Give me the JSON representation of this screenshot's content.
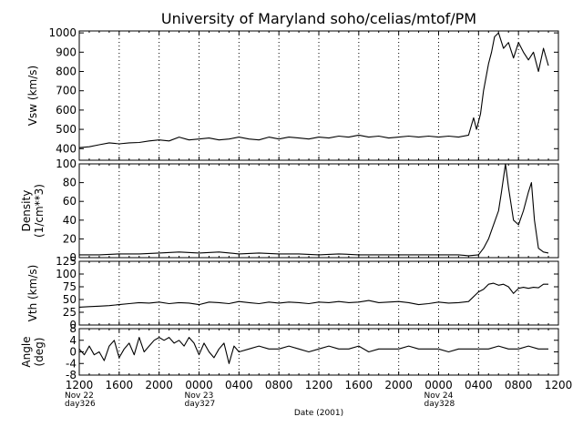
{
  "chart_data": {
    "type": "line",
    "title": "University of Maryland  soho/celias/mtof/PM",
    "xlabel": "Date (2001)",
    "x_ticks": [
      "1200",
      "1600",
      "2000",
      "0000",
      "0400",
      "0800",
      "1200",
      "1600",
      "2000",
      "0000",
      "0400",
      "0800",
      "1200"
    ],
    "x_day_labels": [
      {
        "tick": 0,
        "lines": [
          "Nov 22",
          "day326"
        ]
      },
      {
        "tick": 3,
        "lines": [
          "Nov 23",
          "day327"
        ]
      },
      {
        "tick": 9,
        "lines": [
          "Nov 24",
          "day328"
        ]
      }
    ],
    "x_unit": "hours since 2001-11-22 12:00",
    "xlim": [
      0,
      48
    ],
    "grid": "vertical dotted",
    "panels": [
      {
        "ylabel": [
          "Vsw (km/s)"
        ],
        "ylim": [
          340,
          1010
        ],
        "yticks": [
          400,
          500,
          600,
          700,
          800,
          900,
          1000
        ],
        "series": {
          "x": [
            0,
            1,
            2,
            3,
            4,
            5,
            6,
            7,
            8,
            9,
            10,
            11,
            12,
            13,
            14,
            15,
            16,
            17,
            18,
            19,
            20,
            21,
            22,
            23,
            24,
            25,
            26,
            27,
            28,
            29,
            30,
            31,
            32,
            33,
            34,
            35,
            36,
            37,
            38,
            39,
            39.5,
            39.8,
            40.2,
            40.5,
            41,
            41.3,
            41.6,
            42,
            42.5,
            43,
            43.5,
            44,
            44.5,
            45,
            45.5,
            46,
            46.5,
            47
          ],
          "y": [
            405,
            410,
            420,
            430,
            425,
            430,
            432,
            440,
            445,
            440,
            460,
            445,
            450,
            455,
            445,
            450,
            460,
            450,
            445,
            460,
            450,
            460,
            455,
            450,
            460,
            455,
            465,
            460,
            470,
            460,
            465,
            455,
            460,
            465,
            460,
            465,
            460,
            465,
            460,
            470,
            560,
            500,
            580,
            700,
            840,
            900,
            980,
            1000,
            920,
            950,
            870,
            950,
            900,
            860,
            900,
            800,
            920,
            830
          ]
        }
      },
      {
        "ylabel": [
          "Density",
          "(1/cm**3)"
        ],
        "ylim": [
          0,
          100
        ],
        "yticks": [
          0,
          20,
          40,
          60,
          80,
          100
        ],
        "series": {
          "x": [
            0,
            2,
            4,
            6,
            8,
            10,
            12,
            14,
            16,
            18,
            20,
            22,
            24,
            26,
            28,
            30,
            32,
            34,
            36,
            38,
            39,
            40,
            40.5,
            41,
            41.5,
            42,
            42.3,
            42.7,
            43,
            43.5,
            44,
            44.5,
            45,
            45.3,
            45.6,
            46,
            46.5,
            47
          ],
          "y": [
            3,
            3,
            4,
            4,
            5,
            6,
            5,
            6,
            4,
            5,
            4,
            4,
            3,
            4,
            3,
            3,
            3,
            3,
            3,
            3,
            2,
            3,
            10,
            20,
            35,
            50,
            70,
            100,
            75,
            40,
            35,
            50,
            70,
            80,
            40,
            10,
            6,
            5
          ]
        }
      },
      {
        "ylabel": [
          "Vth (km/s)"
        ],
        "ylim": [
          0,
          125
        ],
        "yticks": [
          0,
          25,
          50,
          75,
          100,
          125
        ],
        "series": {
          "x": [
            0,
            1,
            2,
            3,
            4,
            5,
            6,
            7,
            8,
            9,
            10,
            11,
            12,
            13,
            14,
            15,
            16,
            17,
            18,
            19,
            20,
            21,
            22,
            23,
            24,
            25,
            26,
            27,
            28,
            29,
            30,
            31,
            32,
            33,
            34,
            35,
            36,
            37,
            38,
            39,
            40,
            40.5,
            41,
            41.5,
            42,
            42.5,
            43,
            43.5,
            44,
            44.5,
            45,
            45.5,
            46,
            46.5,
            47
          ],
          "y": [
            35,
            36,
            37,
            38,
            40,
            42,
            44,
            43,
            45,
            42,
            44,
            43,
            40,
            45,
            44,
            42,
            46,
            44,
            42,
            45,
            43,
            45,
            44,
            42,
            45,
            44,
            46,
            44,
            45,
            48,
            44,
            45,
            46,
            44,
            40,
            42,
            45,
            43,
            44,
            46,
            65,
            70,
            80,
            82,
            78,
            80,
            75,
            62,
            72,
            74,
            72,
            74,
            73,
            80,
            80
          ]
        }
      },
      {
        "ylabel": [
          "Angle",
          "(deg)"
        ],
        "ylim": [
          -8,
          8
        ],
        "yticks": [
          -8,
          -4,
          0,
          4,
          8
        ],
        "series": {
          "x": [
            0,
            0.5,
            1,
            1.5,
            2,
            2.5,
            3,
            3.5,
            4,
            4.5,
            5,
            5.5,
            6,
            6.5,
            7,
            7.5,
            8,
            8.5,
            9,
            9.5,
            10,
            10.5,
            11,
            11.5,
            12,
            12.5,
            13,
            13.5,
            14,
            14.5,
            15,
            15.5,
            16,
            17,
            18,
            19,
            20,
            21,
            22,
            23,
            24,
            25,
            26,
            27,
            28,
            29,
            30,
            31,
            32,
            33,
            34,
            35,
            36,
            37,
            38,
            39,
            40,
            41,
            42,
            43,
            44,
            45,
            46,
            47
          ],
          "y": [
            1,
            -1,
            2,
            -1,
            0,
            -3,
            2,
            4,
            -2,
            1,
            3,
            -1,
            5,
            0,
            2,
            4,
            5,
            4,
            5,
            3,
            4,
            2,
            5,
            3,
            -1,
            3,
            0,
            -2,
            1,
            3,
            -4,
            2,
            0,
            1,
            2,
            1,
            1,
            2,
            1,
            0,
            1,
            2,
            1,
            1,
            2,
            0,
            1,
            1,
            1,
            2,
            1,
            1,
            1,
            0,
            1,
            1,
            1,
            1,
            2,
            1,
            1,
            2,
            1,
            1
          ]
        }
      }
    ]
  }
}
